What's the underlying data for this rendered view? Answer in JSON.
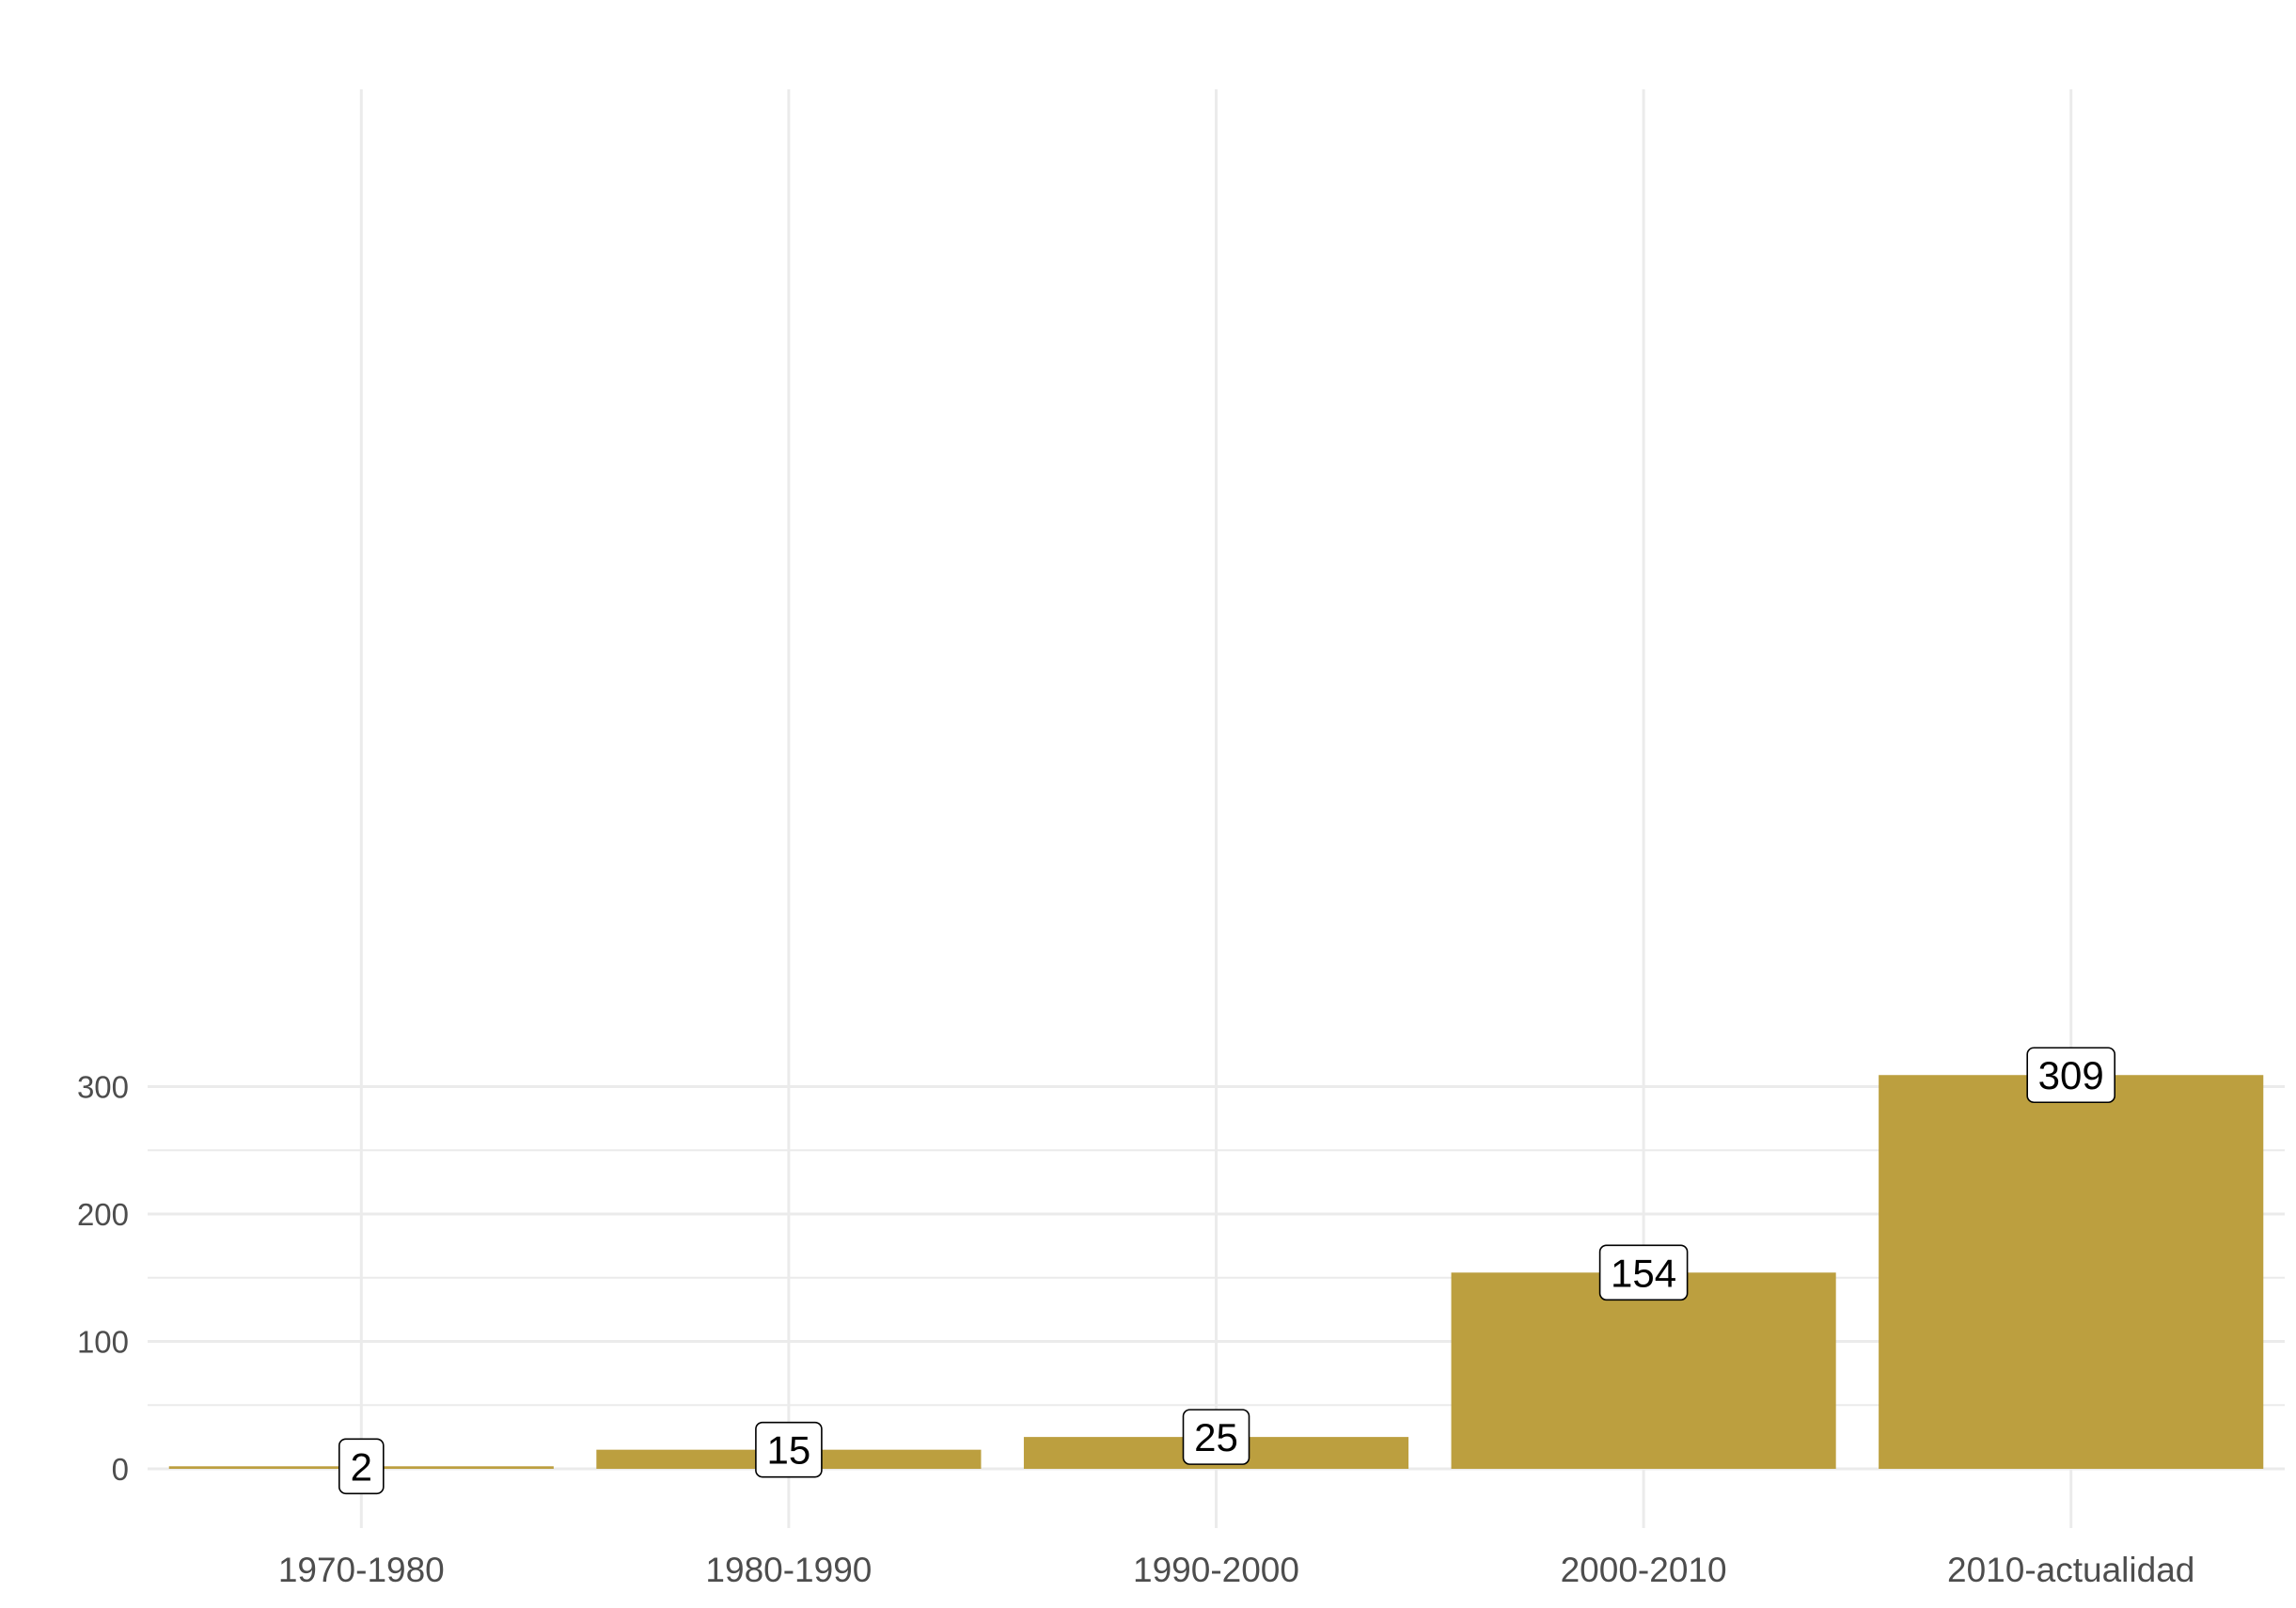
{
  "chart_data": {
    "type": "bar",
    "categories": [
      "1970-1980",
      "1980-1990",
      "1990-2000",
      "2000-2010",
      "2010-actualidad"
    ],
    "values": [
      2,
      15,
      25,
      154,
      309
    ],
    "data_labels": [
      "2",
      "15",
      "25",
      "154",
      "309"
    ],
    "title": "",
    "xlabel": "",
    "ylabel": "",
    "ylim": [
      -12,
      325
    ],
    "yticks": [
      0,
      100,
      200,
      300
    ],
    "ytick_labels": [
      "0",
      "100",
      "200",
      "300"
    ],
    "grid": true,
    "legend": "none",
    "colors": {
      "bar": "#bc9f3f",
      "grid": "#ebebeb",
      "tick_text": "#4d4d4d",
      "label_box": "#ffffff",
      "label_text": "#000000"
    }
  }
}
